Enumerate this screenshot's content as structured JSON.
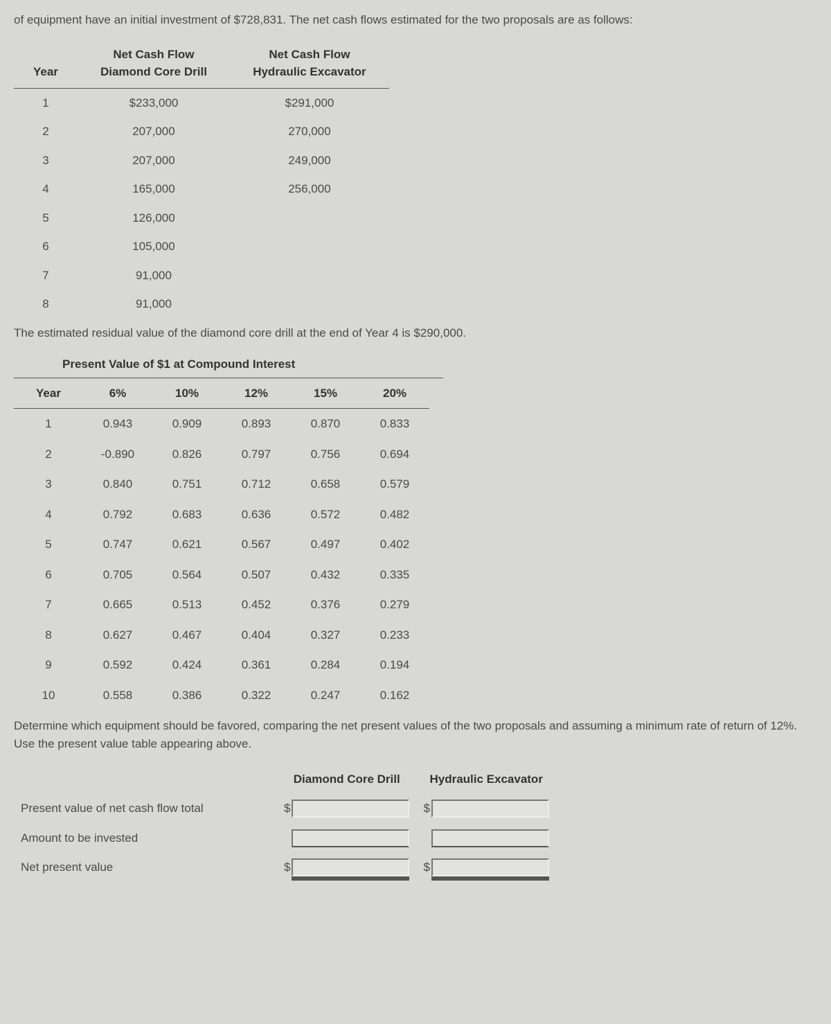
{
  "intro": "of equipment have an initial investment of $728,831. The net cash flows estimated for the two proposals are as follows:",
  "cashflow": {
    "headers": [
      "Year",
      "Net Cash Flow Diamond Core Drill",
      "Net Cash Flow Hydraulic Excavator"
    ],
    "h_year": "Year",
    "h_col1a": "Net Cash Flow",
    "h_col1b": "Diamond Core Drill",
    "h_col2a": "Net Cash Flow",
    "h_col2b": "Hydraulic Excavator",
    "rows": [
      {
        "y": "1",
        "a": "$233,000",
        "b": "$291,000"
      },
      {
        "y": "2",
        "a": "207,000",
        "b": "270,000"
      },
      {
        "y": "3",
        "a": "207,000",
        "b": "249,000"
      },
      {
        "y": "4",
        "a": "165,000",
        "b": "256,000"
      },
      {
        "y": "5",
        "a": "126,000",
        "b": ""
      },
      {
        "y": "6",
        "a": "105,000",
        "b": ""
      },
      {
        "y": "7",
        "a": "91,000",
        "b": ""
      },
      {
        "y": "8",
        "a": "91,000",
        "b": ""
      }
    ]
  },
  "residual": "The estimated residual value of the diamond core drill at the end of Year 4 is $290,000.",
  "pv_caption": "Present Value of $1 at Compound Interest",
  "pv": {
    "headers": [
      "Year",
      "6%",
      "10%",
      "12%",
      "15%",
      "20%"
    ],
    "rows": [
      [
        "1",
        "0.943",
        "0.909",
        "0.893",
        "0.870",
        "0.833"
      ],
      [
        "2",
        "-0.890",
        "0.826",
        "0.797",
        "0.756",
        "0.694"
      ],
      [
        "3",
        "0.840",
        "0.751",
        "0.712",
        "0.658",
        "0.579"
      ],
      [
        "4",
        "0.792",
        "0.683",
        "0.636",
        "0.572",
        "0.482"
      ],
      [
        "5",
        "0.747",
        "0.621",
        "0.567",
        "0.497",
        "0.402"
      ],
      [
        "6",
        "0.705",
        "0.564",
        "0.507",
        "0.432",
        "0.335"
      ],
      [
        "7",
        "0.665",
        "0.513",
        "0.452",
        "0.376",
        "0.279"
      ],
      [
        "8",
        "0.627",
        "0.467",
        "0.404",
        "0.327",
        "0.233"
      ],
      [
        "9",
        "0.592",
        "0.424",
        "0.361",
        "0.284",
        "0.194"
      ],
      [
        "10",
        "0.558",
        "0.386",
        "0.322",
        "0.247",
        "0.162"
      ]
    ]
  },
  "instruct": "Determine which equipment should be favored, comparing the net present values of the two proposals and assuming a minimum rate of return of 12%. Use the present value table appearing above.",
  "answer": {
    "col1": "Diamond Core Drill",
    "col2": "Hydraulic Excavator",
    "r1": "Present value of net cash flow total",
    "r2": "Amount to be invested",
    "r3": "Net present value",
    "dollar": "$"
  }
}
